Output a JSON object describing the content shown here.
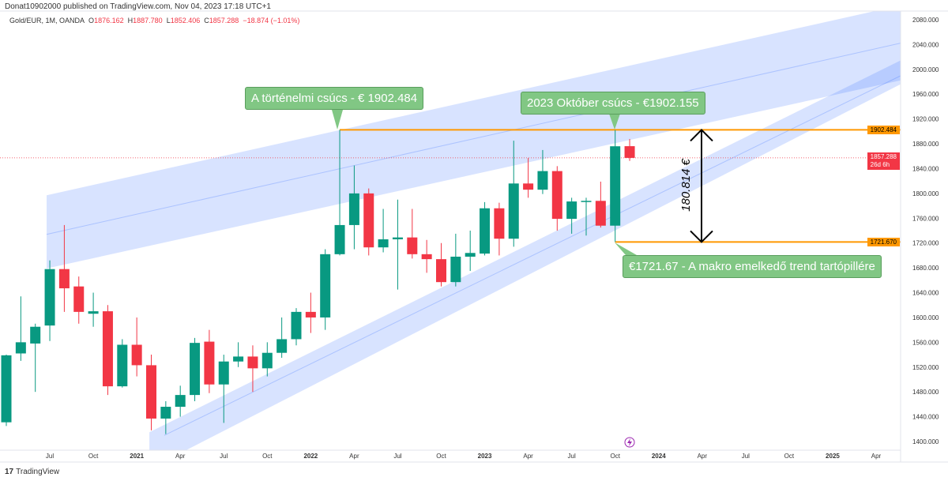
{
  "header": {
    "published": "Donat10902000 published on TradingView.com, Nov 04, 2023 17:18 UTC+1",
    "symbol": "Gold/EUR, 1M, OANDA",
    "o_label": "O",
    "o": "1876.162",
    "h_label": "H",
    "h": "1887.780",
    "l_label": "L",
    "l": "1852.406",
    "c_label": "C",
    "c": "1857.288",
    "change": "−18.874 (−1.01%)"
  },
  "footer": {
    "logo_mark": "17",
    "brand": "TradingView"
  },
  "colors": {
    "up": "#089981",
    "down": "#f23645",
    "band": "#c5d3fb",
    "orange": "#ff9800",
    "callout": "#81c784"
  },
  "annotations": {
    "ath": "A történelmi csúcs - € 1902.484",
    "oct": "2023 Október csúcs - €1902.155",
    "support": "€1721.67 - A makro emelkedő trend tartópillére",
    "measure": "180.814 €"
  },
  "price_labels": {
    "ath": "1902.484",
    "last": "1857.288",
    "countdown": "26d 6h",
    "support": "1721.670"
  },
  "chart_data": {
    "type": "candlestick",
    "title": "Gold/EUR, 1M, OANDA",
    "ylim": [
      1390,
      2090
    ],
    "yticks": [
      "2080.000",
      "2040.000",
      "2000.000",
      "1960.000",
      "1920.000",
      "1880.000",
      "1840.000",
      "1800.000",
      "1760.000",
      "1720.000",
      "1680.000",
      "1640.000",
      "1600.000",
      "1560.000",
      "1520.000",
      "1480.000",
      "1440.000",
      "1400.000"
    ],
    "xticks": [
      {
        "i": 3,
        "label": "Jul"
      },
      {
        "i": 6,
        "label": "Oct"
      },
      {
        "i": 9,
        "label": "2021"
      },
      {
        "i": 12,
        "label": "Apr"
      },
      {
        "i": 15,
        "label": "Jul"
      },
      {
        "i": 18,
        "label": "Oct"
      },
      {
        "i": 21,
        "label": "2022"
      },
      {
        "i": 24,
        "label": "Apr"
      },
      {
        "i": 27,
        "label": "Jul"
      },
      {
        "i": 30,
        "label": "Oct"
      },
      {
        "i": 33,
        "label": "2023"
      },
      {
        "i": 36,
        "label": "Apr"
      },
      {
        "i": 39,
        "label": "Jul"
      },
      {
        "i": 42,
        "label": "Oct"
      },
      {
        "i": 45,
        "label": "2024"
      },
      {
        "i": 48,
        "label": "Apr"
      },
      {
        "i": 51,
        "label": "Jul"
      },
      {
        "i": 54,
        "label": "Oct"
      },
      {
        "i": 57,
        "label": "2025"
      },
      {
        "i": 60,
        "label": "Apr"
      }
    ],
    "first_month": "2020-04",
    "candles": [
      [
        1431,
        1540,
        1425,
        1539
      ],
      [
        1542,
        1634,
        1530,
        1560
      ],
      [
        1558,
        1590,
        1480,
        1585
      ],
      [
        1587,
        1692,
        1562,
        1678
      ],
      [
        1678,
        1749,
        1609,
        1647
      ],
      [
        1650,
        1666,
        1590,
        1609
      ],
      [
        1606,
        1640,
        1585,
        1610
      ],
      [
        1610,
        1620,
        1475,
        1489
      ],
      [
        1489,
        1565,
        1487,
        1556
      ],
      [
        1556,
        1600,
        1505,
        1523
      ],
      [
        1523,
        1540,
        1418,
        1437
      ],
      [
        1437,
        1465,
        1412,
        1456
      ],
      [
        1456,
        1490,
        1440,
        1475
      ],
      [
        1475,
        1567,
        1465,
        1559
      ],
      [
        1561,
        1580,
        1478,
        1492
      ],
      [
        1492,
        1540,
        1430,
        1529
      ],
      [
        1529,
        1560,
        1520,
        1537
      ],
      [
        1537,
        1555,
        1480,
        1518
      ],
      [
        1518,
        1560,
        1505,
        1543
      ],
      [
        1543,
        1600,
        1535,
        1565
      ],
      [
        1565,
        1615,
        1555,
        1609
      ],
      [
        1609,
        1640,
        1575,
        1600
      ],
      [
        1600,
        1710,
        1580,
        1702
      ],
      [
        1702,
        1902.484,
        1700,
        1749
      ],
      [
        1749,
        1845,
        1710,
        1800
      ],
      [
        1800,
        1808,
        1700,
        1713
      ],
      [
        1713,
        1775,
        1705,
        1726
      ],
      [
        1726,
        1790,
        1645,
        1729
      ],
      [
        1729,
        1775,
        1695,
        1702
      ],
      [
        1702,
        1725,
        1672,
        1694
      ],
      [
        1694,
        1720,
        1650,
        1657
      ],
      [
        1657,
        1735,
        1650,
        1698
      ],
      [
        1698,
        1740,
        1675,
        1704
      ],
      [
        1703,
        1786,
        1700,
        1776
      ],
      [
        1776,
        1785,
        1700,
        1727
      ],
      [
        1727,
        1885,
        1714,
        1816
      ],
      [
        1816,
        1857,
        1793,
        1806
      ],
      [
        1806,
        1870,
        1799,
        1836
      ],
      [
        1836,
        1844,
        1740,
        1759
      ],
      [
        1759,
        1793,
        1735,
        1787
      ],
      [
        1787,
        1793,
        1732,
        1788
      ],
      [
        1788,
        1819,
        1745,
        1748
      ],
      [
        1748,
        1902.155,
        1721.67,
        1876
      ],
      [
        1876.162,
        1887.78,
        1852.406,
        1857.288
      ]
    ],
    "levels": [
      {
        "name": "ath",
        "price": 1902.484,
        "from_i": 23
      },
      {
        "name": "support",
        "price": 1721.67,
        "from_i": 42
      }
    ],
    "channels": [
      {
        "name": "upper-channel",
        "top": [
          [
            2.78,
            1797
          ],
          [
            62.6,
            2108
          ]
        ],
        "bottom": [
          [
            2.78,
            1679
          ],
          [
            62.6,
            1987
          ]
        ],
        "mid": [
          [
            2.78,
            1734
          ],
          [
            62.6,
            2047
          ]
        ]
      },
      {
        "name": "lower-channel",
        "top": [
          [
            9.87,
            1415
          ],
          [
            62.6,
            2025
          ]
        ],
        "bottom": [
          [
            12.4,
            1386
          ],
          [
            62.6,
            1987
          ]
        ],
        "mid": [
          [
            10.9,
            1410
          ],
          [
            62.6,
            2000
          ]
        ],
        "left_bottom": [
          9.87,
          1386
        ]
      }
    ]
  }
}
